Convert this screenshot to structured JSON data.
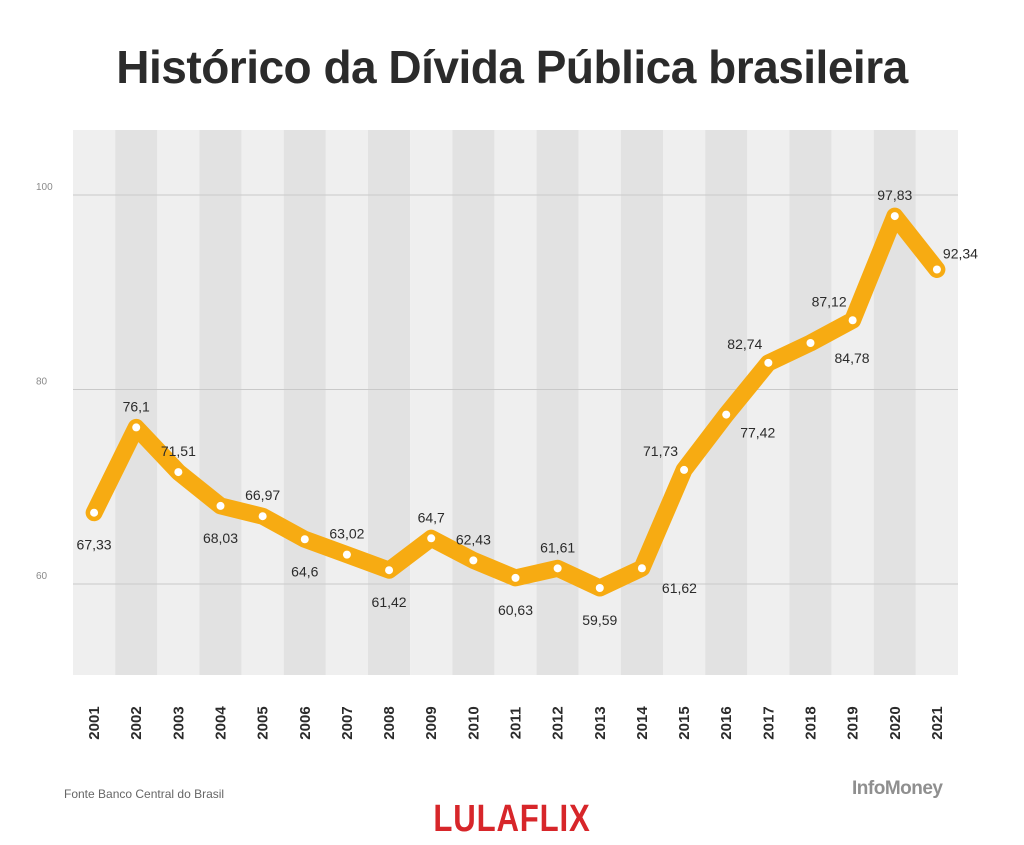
{
  "title": "Histórico da Dívida Pública brasileira",
  "source": "Fonte Banco Central do Brasil",
  "brand": "InfoMoney",
  "watermark": "LULAFLIX",
  "colors": {
    "line": "#f7ab12",
    "marker": "#ffffff",
    "band_light": "#efefef",
    "band_dark": "#e2e2e2",
    "grid": "#c9c9c9",
    "text": "#2b2b2b",
    "watermark": "#d7262a"
  },
  "chart_data": {
    "type": "line",
    "title": "Histórico da Dívida Pública brasileira",
    "xlabel": "",
    "ylabel": "",
    "ylim": [
      51,
      107
    ],
    "yticks": [
      "60",
      "80",
      "100"
    ],
    "yticks_values": [
      60,
      80,
      100
    ],
    "grid": true,
    "legend": "none",
    "categories": [
      "2001",
      "2002",
      "2003",
      "2004",
      "2005",
      "2006",
      "2007",
      "2008",
      "2009",
      "2010",
      "2011",
      "2012",
      "2013",
      "2014",
      "2015",
      "2016",
      "2017",
      "2018",
      "2019",
      "2020",
      "2021"
    ],
    "values": [
      67.33,
      76.1,
      71.51,
      68.03,
      66.97,
      64.6,
      63.02,
      61.42,
      64.7,
      62.43,
      60.63,
      61.61,
      59.59,
      61.62,
      71.73,
      77.42,
      82.74,
      84.78,
      87.12,
      97.83,
      92.34
    ],
    "value_labels": [
      "67,33",
      "76,1",
      "71,51",
      "68,03",
      "66,97",
      "64,6",
      "63,02",
      "61,42",
      "64,7",
      "62,43",
      "60,63",
      "61,61",
      "59,59",
      "61,62",
      "71,73",
      "77,42",
      "82,74",
      "84,78",
      "87,12",
      "97,83",
      "92,34"
    ],
    "label_positions": [
      "below",
      "above",
      "above",
      "below",
      "above",
      "below",
      "above",
      "below",
      "above",
      "above",
      "below",
      "above",
      "below",
      "right",
      "above-left",
      "right",
      "above-left",
      "right",
      "above-left",
      "above",
      "right"
    ]
  }
}
